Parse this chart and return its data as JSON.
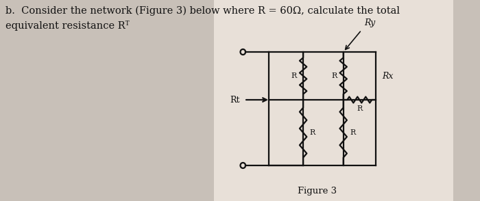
{
  "title_line1": "b.  Consider the network (Figure 3) below where R = 60Ω, calculate the total",
  "title_line2": "equivalent resistance Rᵀ",
  "figure_label": "Figure 3",
  "bg_color_left": "#c8c0b8",
  "bg_color_right": "#e8e0d8",
  "text_color": "#111111",
  "circuit_color": "#111111",
  "Ry_label": "Ry",
  "Rx_label": "Rx",
  "Rt_label": "Rt",
  "font_size_body": 10.5,
  "font_size_fig": 9.5,
  "font_size_label": 8.5,
  "font_size_Rxy": 9
}
